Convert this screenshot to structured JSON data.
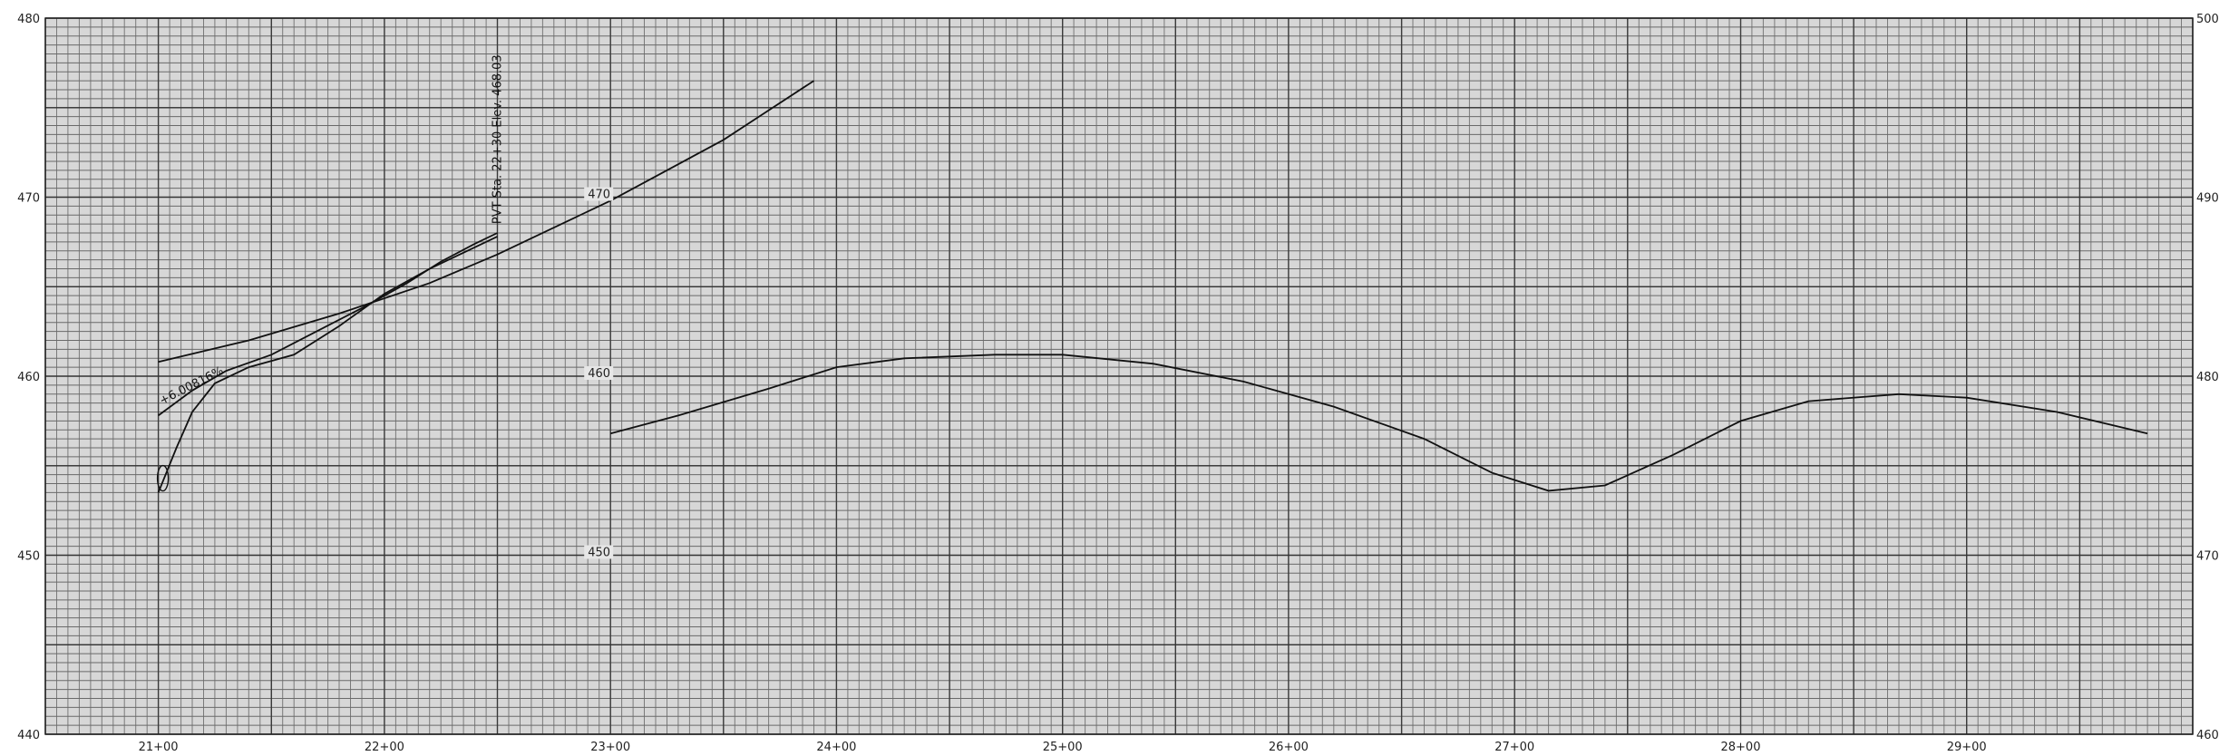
{
  "chart_data": {
    "type": "line",
    "title": "",
    "xlabel": "",
    "ylabel": "",
    "grid": true,
    "xlim": [
      2050,
      3000
    ],
    "ylim_left": [
      440,
      480
    ],
    "x_ticks": [
      {
        "value": 2100,
        "label": "21+00"
      },
      {
        "value": 2200,
        "label": "22+00"
      },
      {
        "value": 2300,
        "label": "23+00"
      },
      {
        "value": 2400,
        "label": "24+00"
      },
      {
        "value": 2500,
        "label": "25+00"
      },
      {
        "value": 2600,
        "label": "26+00"
      },
      {
        "value": 2700,
        "label": "27+00"
      },
      {
        "value": 2800,
        "label": "28+00"
      },
      {
        "value": 2900,
        "label": "29+00"
      }
    ],
    "left_ticks": [
      {
        "value": 440,
        "label": "440"
      },
      {
        "value": 450,
        "label": "450"
      },
      {
        "value": 460,
        "label": "460"
      },
      {
        "value": 470,
        "label": "470"
      },
      {
        "value": 480,
        "label": "480"
      }
    ],
    "mid_labels": [
      {
        "x": 2290,
        "y": 470,
        "label": "470"
      },
      {
        "x": 2290,
        "y": 460,
        "label": "460"
      },
      {
        "x": 2290,
        "y": 450,
        "label": "450"
      }
    ],
    "right_ticks": [
      {
        "value": 440,
        "label": "460"
      },
      {
        "value": 450,
        "label": "470"
      },
      {
        "value": 460,
        "label": "480"
      },
      {
        "value": 470,
        "label": "490"
      },
      {
        "value": 480,
        "label": "500"
      }
    ],
    "series": [
      {
        "points": [
          [
            2100,
            460.8
          ],
          [
            2140,
            462
          ],
          [
            2180,
            463.5
          ],
          [
            2220,
            465.2
          ],
          [
            2250,
            466.8
          ],
          [
            2300,
            469.8
          ],
          [
            2350,
            473.2
          ],
          [
            2390,
            476.5
          ]
        ]
      },
      {
        "points": [
          [
            2100,
            457.8
          ],
          [
            2115,
            459.2
          ],
          [
            2130,
            460.3
          ],
          [
            2150,
            461.2
          ],
          [
            2170,
            462.5
          ],
          [
            2190,
            463.8
          ],
          [
            2210,
            465.2
          ],
          [
            2225,
            466.4
          ],
          [
            2240,
            467.4
          ],
          [
            2250,
            468
          ]
        ]
      },
      {
        "points": [
          [
            2100,
            453.5
          ],
          [
            2108,
            456
          ],
          [
            2115,
            458
          ],
          [
            2125,
            459.6
          ],
          [
            2140,
            460.5
          ],
          [
            2160,
            461.2
          ],
          [
            2180,
            462.8
          ],
          [
            2200,
            464.6
          ],
          [
            2220,
            466
          ],
          [
            2240,
            467.2
          ],
          [
            2250,
            467.8
          ]
        ]
      },
      {
        "points": [
          [
            2300,
            456.8
          ],
          [
            2330,
            457.8
          ],
          [
            2370,
            459.3
          ],
          [
            2400,
            460.5
          ],
          [
            2430,
            461
          ],
          [
            2470,
            461.2
          ],
          [
            2500,
            461.2
          ],
          [
            2540,
            460.7
          ],
          [
            2580,
            459.7
          ],
          [
            2620,
            458.3
          ],
          [
            2660,
            456.5
          ],
          [
            2690,
            454.6
          ],
          [
            2715,
            453.6
          ],
          [
            2740,
            453.9
          ],
          [
            2770,
            455.6
          ],
          [
            2800,
            457.5
          ],
          [
            2830,
            458.6
          ],
          [
            2870,
            459
          ],
          [
            2900,
            458.8
          ],
          [
            2940,
            458
          ],
          [
            2980,
            456.8
          ]
        ]
      }
    ],
    "annotations": [
      {
        "text": "PVT Sta. 22+30  Elev. 468.03",
        "x": 2250,
        "y": 468.5,
        "rotate": -90
      },
      {
        "text": "+6.00816%",
        "x": 2100,
        "y": 458.2,
        "rotate": -27
      }
    ]
  }
}
